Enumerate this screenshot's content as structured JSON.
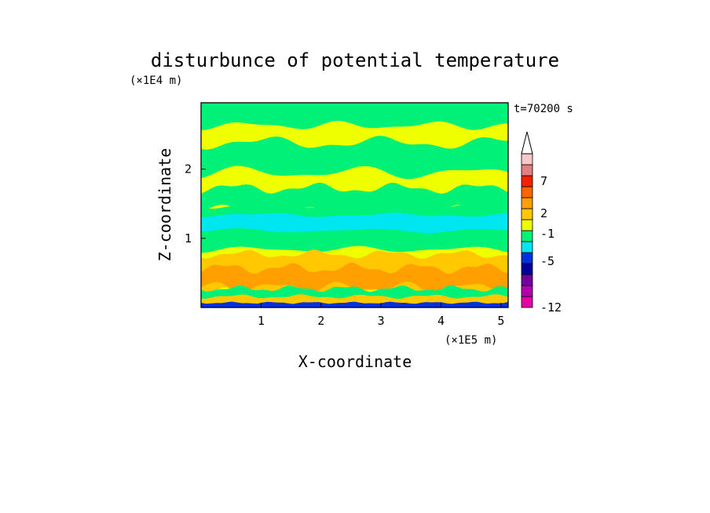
{
  "chart_data": {
    "type": "heatmap",
    "title": "disturbunce of potential temperature",
    "xlabel": "X-coordinate",
    "ylabel": "Z-coordinate",
    "x_unit": "(×1E5 m)",
    "y_unit": "(×1E4 m)",
    "time_label": "t=70200 s",
    "xlim": [
      0,
      5.12
    ],
    "ylim": [
      0,
      2.96
    ],
    "x_ticks": [
      "1",
      "2",
      "3",
      "4",
      "5"
    ],
    "y_ticks": [
      "1",
      "2"
    ],
    "grid": false,
    "legend_position": "right",
    "colorbar_labels": [
      {
        "label": "7",
        "level": 7
      },
      {
        "label": "2",
        "level": 2
      },
      {
        "label": "-1",
        "level": -1
      },
      {
        "label": "-5",
        "level": -5
      },
      {
        "label": "-12",
        "level": -12
      }
    ],
    "colorbar_colors": [
      "#e600a0",
      "#b000b0",
      "#7000a0",
      "#0000a0",
      "#0030e0",
      "#00e6f0",
      "#00f078",
      "#f0ff00",
      "#ffc800",
      "#ffa000",
      "#ff6400",
      "#ff1e00",
      "#e08080",
      "#f8c8c8"
    ],
    "band_colors": {
      "cold_strong": "#0030e0",
      "cold": "#00e6f0",
      "cool": "#00f078",
      "neutral_warm": "#f0ff00",
      "warm": "#ffc800",
      "warmer": "#ffa000"
    }
  }
}
